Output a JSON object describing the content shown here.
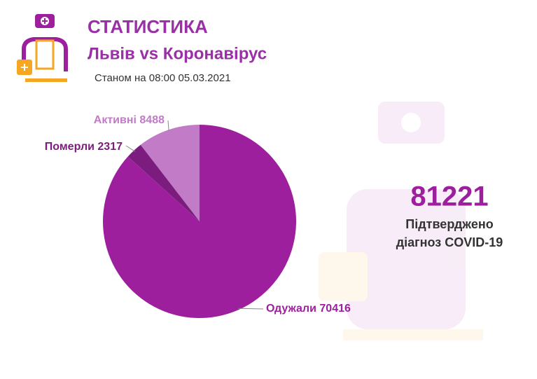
{
  "chart_data": {
    "type": "pie",
    "title": "СТАТИСТИКА",
    "subtitle": "Львів vs Коронавірус",
    "date": "Станом на 08:00 05.03.2021",
    "categories": [
      "Активні",
      "Померли",
      "Одужали"
    ],
    "values": [
      8488,
      2317,
      70416
    ],
    "colors": [
      "#c27bc6",
      "#7b1c7e",
      "#9e1f9e"
    ],
    "total": 81221,
    "total_label": [
      "Підтверджено",
      "діагноз COVID-19"
    ]
  }
}
